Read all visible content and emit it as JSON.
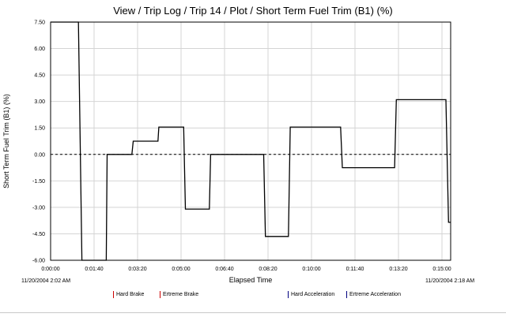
{
  "page": {
    "title": "View / Trip Log / Trip 14 / Plot / Short Term Fuel Trim (B1) (%)",
    "start_stamp": "11/20/2004 2:02 AM",
    "end_stamp": "11/20/2004 2:18 AM"
  },
  "legend": [
    {
      "label": "Hard Brake",
      "color": "#cc0000"
    },
    {
      "label": "Ertreme Brake",
      "color": "#cc0000"
    },
    {
      "label": "Hard Acceleration",
      "color": "#000080"
    },
    {
      "label": "Ertreme Acceleration",
      "color": "#000080"
    }
  ],
  "chart_data": {
    "type": "line",
    "title": "View / Trip Log / Trip 14 / Plot / Short Term Fuel Trim (B1) (%)",
    "xlabel": "Elapsed Time",
    "ylabel": "Short Term Fuel Trim (B1) (%)",
    "xlim": [
      0,
      920
    ],
    "ylim": [
      -6.0,
      7.5
    ],
    "x_ticks": [
      0,
      100,
      200,
      300,
      400,
      500,
      600,
      700,
      800,
      900
    ],
    "x_tick_labels": [
      "0:00:00",
      "0:01:40",
      "0:03:20",
      "0:05:00",
      "0:06:40",
      "0:08:20",
      "0:10:00",
      "0:11:40",
      "0:13:20",
      "0:15:00"
    ],
    "y_ticks": [
      7.5,
      6.0,
      4.5,
      3.0,
      1.5,
      0.0,
      -1.5,
      -3.0,
      -4.5,
      -6.0
    ],
    "y_tick_labels": [
      "7.50",
      "6.00",
      "4.50",
      "3.00",
      "1.50",
      "0.00",
      "-1.50",
      "-3.00",
      "-4.50",
      "-6.00"
    ],
    "zero_line": 0.0,
    "line_color": "#000000",
    "series": [
      {
        "values_xy": [
          [
            0,
            7.8
          ],
          [
            64,
            7.8
          ],
          [
            72,
            -6.0
          ],
          [
            128,
            -6.0
          ],
          [
            130,
            0.0
          ],
          [
            187,
            0.0
          ],
          [
            190,
            0.75
          ],
          [
            247,
            0.75
          ],
          [
            249,
            1.55
          ],
          [
            306,
            1.55
          ],
          [
            310,
            -3.1
          ],
          [
            365,
            -3.1
          ],
          [
            368,
            0.0
          ],
          [
            490,
            0.0
          ],
          [
            494,
            -4.65
          ],
          [
            547,
            -4.65
          ],
          [
            551,
            1.55
          ],
          [
            667,
            1.55
          ],
          [
            671,
            -0.75
          ],
          [
            791,
            -0.75
          ],
          [
            795,
            3.1
          ],
          [
            909,
            3.1
          ],
          [
            915,
            -3.85
          ],
          [
            920,
            -3.85
          ]
        ]
      }
    ]
  }
}
